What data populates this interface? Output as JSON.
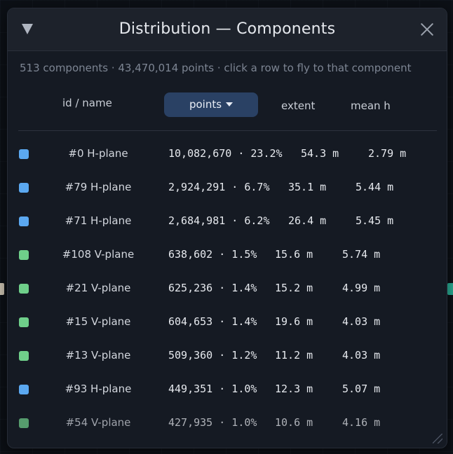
{
  "window": {
    "title": "Distribution — Components",
    "summary": "513 components · 43,470,014 points · click a row to fly to that component"
  },
  "columns": {
    "name": "id / name",
    "points": "points",
    "extent": "extent",
    "mean": "mean h"
  },
  "colors": {
    "h_plane": "#5ba8f0",
    "v_plane": "#6fcf8a",
    "header_active": "#2a4164"
  },
  "icons": {
    "collapse": "triangle-down-icon",
    "close": "close-icon",
    "sort": "caret-down-icon",
    "resize": "resize-grip-icon"
  },
  "rows": [
    {
      "name": "#0 H-plane",
      "points": "10,082,670 · 23.2%",
      "extent": "54.3 m",
      "mean": "2.79 m",
      "type": "h"
    },
    {
      "name": "#79 H-plane",
      "points": "2,924,291 · 6.7%",
      "extent": "35.1 m",
      "mean": "5.44 m",
      "type": "h"
    },
    {
      "name": "#71 H-plane",
      "points": "2,684,981 · 6.2%",
      "extent": "26.4 m",
      "mean": "5.45 m",
      "type": "h"
    },
    {
      "name": "#108 V-plane",
      "points": "638,602 · 1.5%",
      "extent": "15.6 m",
      "mean": "5.74 m",
      "type": "v"
    },
    {
      "name": "#21 V-plane",
      "points": "625,236 · 1.4%",
      "extent": "15.2 m",
      "mean": "4.99 m",
      "type": "v"
    },
    {
      "name": "#15 V-plane",
      "points": "604,653 · 1.4%",
      "extent": "19.6 m",
      "mean": "4.03 m",
      "type": "v"
    },
    {
      "name": "#13 V-plane",
      "points": "509,360 · 1.2%",
      "extent": "11.2 m",
      "mean": "4.03 m",
      "type": "v"
    },
    {
      "name": "#93 H-plane",
      "points": "449,351 · 1.0%",
      "extent": "12.3 m",
      "mean": "5.07 m",
      "type": "h"
    },
    {
      "name": "#54 V-plane",
      "points": "427,935 · 1.0%",
      "extent": "10.6 m",
      "mean": "4.16 m",
      "type": "v"
    }
  ]
}
